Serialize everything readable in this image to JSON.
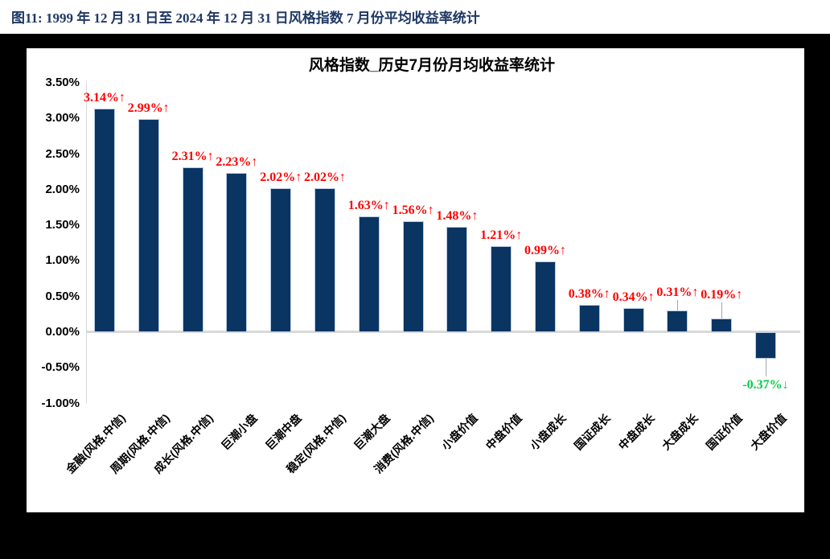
{
  "figure": {
    "title": "图11:  1999 年 12 月 31 日至 2024 年 12 月 31 日风格指数 7 月份平均收益率统计"
  },
  "chart_data": {
    "type": "bar",
    "title": "风格指数_历史7月份月均收益率统计",
    "xlabel": "",
    "ylabel": "",
    "ylim": [
      -1.0,
      3.5
    ],
    "grid": false,
    "legend": "none",
    "y_ticks": [
      {
        "label": "3.50%",
        "value": 3.5
      },
      {
        "label": "3.00%",
        "value": 3.0
      },
      {
        "label": "2.50%",
        "value": 2.5
      },
      {
        "label": "2.00%",
        "value": 2.0
      },
      {
        "label": "1.50%",
        "value": 1.5
      },
      {
        "label": "1.00%",
        "value": 1.0
      },
      {
        "label": "0.50%",
        "value": 0.5
      },
      {
        "label": "0.00%",
        "value": 0.0
      },
      {
        "label": "-0.50%",
        "value": -0.5
      },
      {
        "label": "-1.00%",
        "value": -1.0
      }
    ],
    "categories": [
      "金融(风格.中信)",
      "周期(风格.中信)",
      "成长(风格.中信)",
      "巨潮小盘",
      "巨潮中盘",
      "稳定(风格.中信)",
      "巨潮大盘",
      "消费(风格.中信)",
      "小盘价值",
      "中盘价值",
      "小盘成长",
      "国证成长",
      "中盘成长",
      "大盘成长",
      "国证价值",
      "大盘价值"
    ],
    "values": [
      3.14,
      2.99,
      2.31,
      2.23,
      2.02,
      2.02,
      1.63,
      1.56,
      1.48,
      1.21,
      0.99,
      0.38,
      0.34,
      0.31,
      0.19,
      -0.37
    ],
    "value_labels": [
      "3.14%↑",
      "2.99%↑",
      "2.31%↑",
      "2.23%↑",
      "2.02%↑",
      "2.02%↑",
      "1.63%↑",
      "1.56%↑",
      "1.48%↑",
      "1.21%↑",
      "0.99%↑",
      "0.38%↑",
      "0.34%↑",
      "0.31%↑",
      "0.19%↑",
      "-0.37%↓"
    ],
    "annotations": {
      "label_lifts": [
        0,
        0,
        0,
        0,
        0,
        0,
        0,
        0,
        0,
        0,
        0,
        0,
        0,
        9,
        16,
        0
      ],
      "leader_indices": [
        13,
        14,
        15
      ]
    },
    "colors": {
      "bar": "#0A3563",
      "bar_border": "#B9CDE5",
      "positive_label": "#FF0000",
      "negative_label": "#00CE47",
      "axis_line": "#D9D9D9",
      "chart_title": "#000000",
      "figure_title": "#1F3864",
      "page_background": "#000000",
      "chart_background": "#FFFFFF"
    }
  }
}
